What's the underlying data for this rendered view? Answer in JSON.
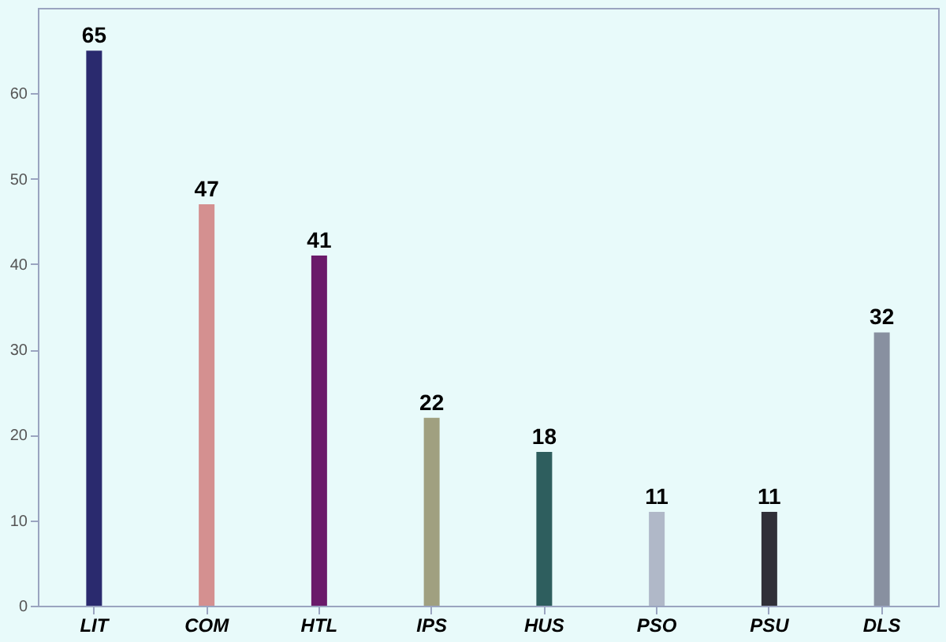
{
  "chart_data": {
    "type": "bar",
    "categories": [
      "LIT",
      "COM",
      "HTL",
      "IPS",
      "HUS",
      "PSO",
      "PSU",
      "DLS"
    ],
    "values": [
      65,
      47,
      41,
      22,
      18,
      11,
      11,
      32
    ],
    "colors": [
      "#2a2a6e",
      "#d49090",
      "#6a1a6a",
      "#a0a080",
      "#2e5e5e",
      "#b0b8c8",
      "#303038",
      "#8890a0"
    ],
    "ylim": [
      0,
      70
    ],
    "yticks": [
      0,
      10,
      20,
      30,
      40,
      50,
      60
    ],
    "data_labels": true,
    "grid": false,
    "legend": false
  }
}
